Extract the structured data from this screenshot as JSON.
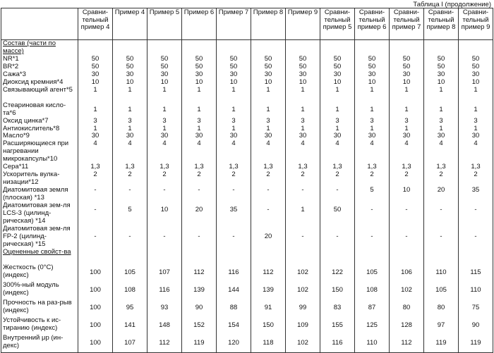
{
  "caption": "Таблица I (продолжение)",
  "headers": [
    "",
    "Сравни-тельный пример 4",
    "Пример 4",
    "Пример 5",
    "Пример 6",
    "Пример 7",
    "Пример 8",
    "Пример 9",
    "Сравни-тельный пример 5",
    "Сравни-тельный пример 6",
    "Сравни-тельный пример 7",
    "Сравни-тельный пример 8",
    "Сравни-тельный пример 9"
  ],
  "composition": {
    "title": "Состав (части по массе)",
    "rows": [
      {
        "label": "NR*1",
        "values": [
          "50",
          "50",
          "50",
          "50",
          "50",
          "50",
          "50",
          "50",
          "50",
          "50",
          "50",
          "50"
        ]
      },
      {
        "label": "BR*2",
        "values": [
          "50",
          "50",
          "50",
          "50",
          "50",
          "50",
          "50",
          "50",
          "50",
          "50",
          "50",
          "50"
        ]
      },
      {
        "label": "Сажа*3",
        "values": [
          "30",
          "30",
          "30",
          "30",
          "30",
          "30",
          "30",
          "30",
          "30",
          "30",
          "30",
          "30"
        ]
      },
      {
        "label": "Диоксид кремния*4",
        "values": [
          "10",
          "10",
          "10",
          "10",
          "10",
          "10",
          "10",
          "10",
          "10",
          "10",
          "10",
          "10"
        ]
      },
      {
        "label": "Связывающий агент*5",
        "values": [
          "1",
          "1",
          "1",
          "1",
          "1",
          "1",
          "1",
          "1",
          "1",
          "1",
          "1",
          "1"
        ]
      },
      {
        "label": "Стеариновая кисло-та*6",
        "values": [
          "1",
          "1",
          "1",
          "1",
          "1",
          "1",
          "1",
          "1",
          "1",
          "1",
          "1",
          "1"
        ]
      },
      {
        "label": "Оксид цинка*7",
        "values": [
          "3",
          "3",
          "3",
          "3",
          "3",
          "3",
          "3",
          "3",
          "3",
          "3",
          "3",
          "3"
        ]
      },
      {
        "label": "Антиокислитель*8",
        "values": [
          "1",
          "1",
          "1",
          "1",
          "1",
          "1",
          "1",
          "1",
          "1",
          "1",
          "1",
          "1"
        ]
      },
      {
        "label": "Масло*9",
        "values": [
          "30",
          "30",
          "30",
          "30",
          "30",
          "30",
          "30",
          "30",
          "30",
          "30",
          "30",
          "30"
        ]
      },
      {
        "label": "Расширяющиеся при нагревании микрокапсулы*10",
        "values": [
          "4",
          "4",
          "4",
          "4",
          "4",
          "4",
          "4",
          "4",
          "4",
          "4",
          "4",
          "4"
        ]
      },
      {
        "label": "Сера*11",
        "values": [
          "1,3",
          "1,3",
          "1,3",
          "1,3",
          "1,3",
          "1,3",
          "1,3",
          "1,3",
          "1,3",
          "1,3",
          "1,3",
          "1,3"
        ]
      },
      {
        "label": "Ускоритель вулка-низации*12",
        "values": [
          "2",
          "2",
          "2",
          "2",
          "2",
          "2",
          "2",
          "2",
          "2",
          "2",
          "2",
          "2"
        ]
      },
      {
        "label": "Диатомитовая земля (плоская) *13",
        "values": [
          "-",
          "-",
          "-",
          "-",
          "-",
          "-",
          "-",
          "-",
          "5",
          "10",
          "20",
          "35"
        ]
      },
      {
        "label": "Диатомитовая зем-ля LCS-3 (цилинд-рическая) *14",
        "values": [
          "-",
          "5",
          "10",
          "20",
          "35",
          "-",
          "1",
          "50",
          "-",
          "-",
          "-",
          "-"
        ]
      },
      {
        "label": "Диатомитовая зем-ля FP-2 (цилинд-рическая) *15",
        "values": [
          "-",
          "-",
          "-",
          "-",
          "-",
          "20",
          "-",
          "-",
          "-",
          "-",
          "-",
          "-"
        ]
      }
    ]
  },
  "properties": {
    "title": "Оцененные свойст-ва",
    "rows": [
      {
        "label": "Жесткость (0°С) (индекс)",
        "values": [
          "100",
          "105",
          "107",
          "112",
          "116",
          "112",
          "102",
          "122",
          "105",
          "106",
          "110",
          "115"
        ]
      },
      {
        "label": "300%-ный модуль (индекс)",
        "values": [
          "100",
          "108",
          "116",
          "139",
          "144",
          "139",
          "102",
          "150",
          "108",
          "102",
          "105",
          "110"
        ]
      },
      {
        "label": "Прочность на раз-рыв (индекс)",
        "values": [
          "100",
          "95",
          "93",
          "90",
          "88",
          "91",
          "99",
          "83",
          "87",
          "80",
          "80",
          "75"
        ]
      },
      {
        "label": "Устойчивость к ис-тиранию (индекс)",
        "values": [
          "100",
          "141",
          "148",
          "152",
          "154",
          "150",
          "109",
          "155",
          "125",
          "128",
          "97",
          "90"
        ]
      },
      {
        "label": "Внутренний μр (ин-декс)",
        "values": [
          "100",
          "107",
          "112",
          "119",
          "120",
          "118",
          "102",
          "116",
          "110",
          "112",
          "119",
          "119"
        ]
      }
    ]
  }
}
